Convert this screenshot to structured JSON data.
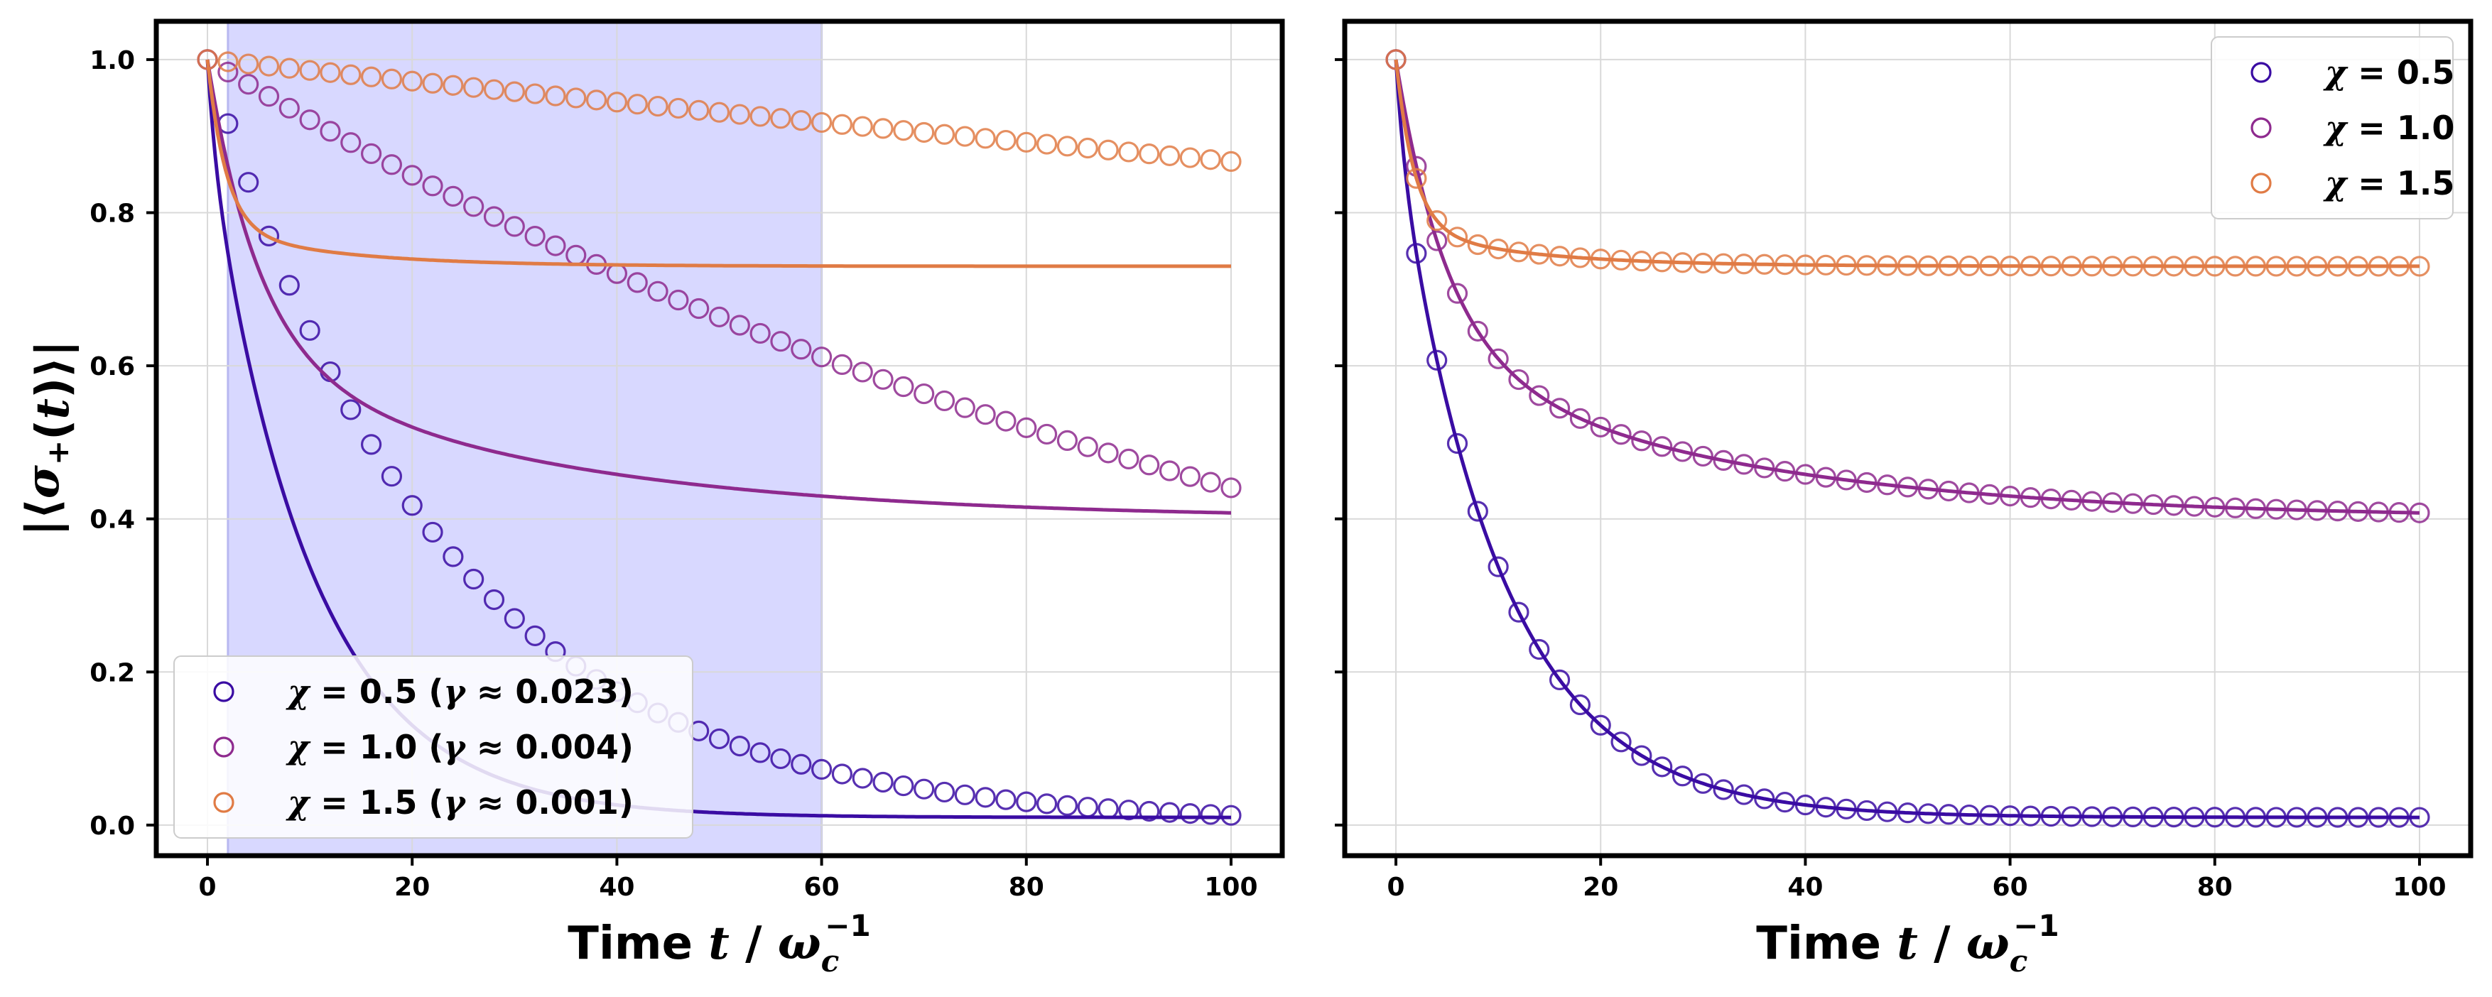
{
  "chart_data": [
    {
      "type": "line",
      "panel": "left",
      "xlabel": "Time t / ω_c^{-1}",
      "ylabel": "|⟨σ₊(t)⟩|",
      "xlim": [
        -5,
        105
      ],
      "ylim": [
        -0.04,
        1.05
      ],
      "xticks": [
        0,
        20,
        40,
        60,
        80,
        100
      ],
      "yticks": [
        0.0,
        0.2,
        0.4,
        0.6,
        0.8,
        1.0
      ],
      "grid": true,
      "shaded_region": {
        "x_start": 2,
        "x_end": 60,
        "color": "#d8d8ff"
      },
      "legend_position": "lower-left",
      "series": [
        {
          "name": "χ = 0.5 (γ ≈ 0.023)",
          "chi": "0.5",
          "gamma": "0.023",
          "color": "#3a0ca3",
          "line": {
            "plateau": 0.01,
            "amp": 0.89,
            "tau": 10.0
          },
          "markers": {
            "plateau": 0.0,
            "amp": 1.0,
            "tau": 22.9
          }
        },
        {
          "name": "χ = 1.0 (γ ≈ 0.004)",
          "chi": "1.0",
          "gamma": "0.004",
          "color": "#8e2a8e",
          "line": {
            "plateau": 0.4,
            "f1": 0.38,
            "tau1": 5.0,
            "f2": 0.22,
            "tau2": 30.0
          },
          "markers": {
            "plateau": 0.0,
            "amp": 1.0,
            "tau": 122.0
          }
        },
        {
          "name": "χ = 1.5 (γ ≈ 0.001)",
          "chi": "1.5",
          "gamma": "0.001",
          "color": "#e07b45",
          "line": {
            "plateau": 0.73,
            "f1": 0.22,
            "tau1": 1.8,
            "f2": 0.05,
            "tau2": 12.0
          },
          "markers": {
            "plateau": 0.0,
            "amp": 1.0,
            "tau": 700.0
          }
        }
      ],
      "markers_x": {
        "start": 0,
        "end": 100,
        "step": 2
      }
    },
    {
      "type": "line",
      "panel": "right",
      "xlabel": "Time t / ω_c^{-1}",
      "xlim": [
        -5,
        105
      ],
      "ylim": [
        -0.04,
        1.05
      ],
      "xticks": [
        0,
        20,
        40,
        60,
        80,
        100
      ],
      "yticks": [
        0.0,
        0.2,
        0.4,
        0.6,
        0.8,
        1.0
      ],
      "grid": true,
      "legend_position": "upper-right",
      "series": [
        {
          "name": "χ = 0.5",
          "chi": "0.5",
          "color": "#3a0ca3",
          "line": {
            "plateau": 0.01,
            "amp": 0.89,
            "tau": 10.0
          },
          "markers": {
            "plateau": 0.01,
            "amp": 0.89,
            "tau": 10.0
          }
        },
        {
          "name": "χ = 1.0",
          "chi": "1.0",
          "color": "#8e2a8e",
          "line": {
            "plateau": 0.4,
            "f1": 0.38,
            "tau1": 5.0,
            "f2": 0.22,
            "tau2": 30.0
          },
          "markers": {
            "plateau": 0.4,
            "f1": 0.38,
            "tau1": 5.0,
            "f2": 0.22,
            "tau2": 30.0
          }
        },
        {
          "name": "χ = 1.5",
          "chi": "1.5",
          "color": "#e07b45",
          "line": {
            "plateau": 0.73,
            "f1": 0.22,
            "tau1": 1.8,
            "f2": 0.05,
            "tau2": 12.0
          },
          "markers": {
            "plateau": 0.73,
            "f1": 0.22,
            "tau1": 1.8,
            "f2": 0.05,
            "tau2": 12.0
          }
        }
      ],
      "markers_x": {
        "start": 0,
        "end": 100,
        "step": 2
      }
    }
  ]
}
